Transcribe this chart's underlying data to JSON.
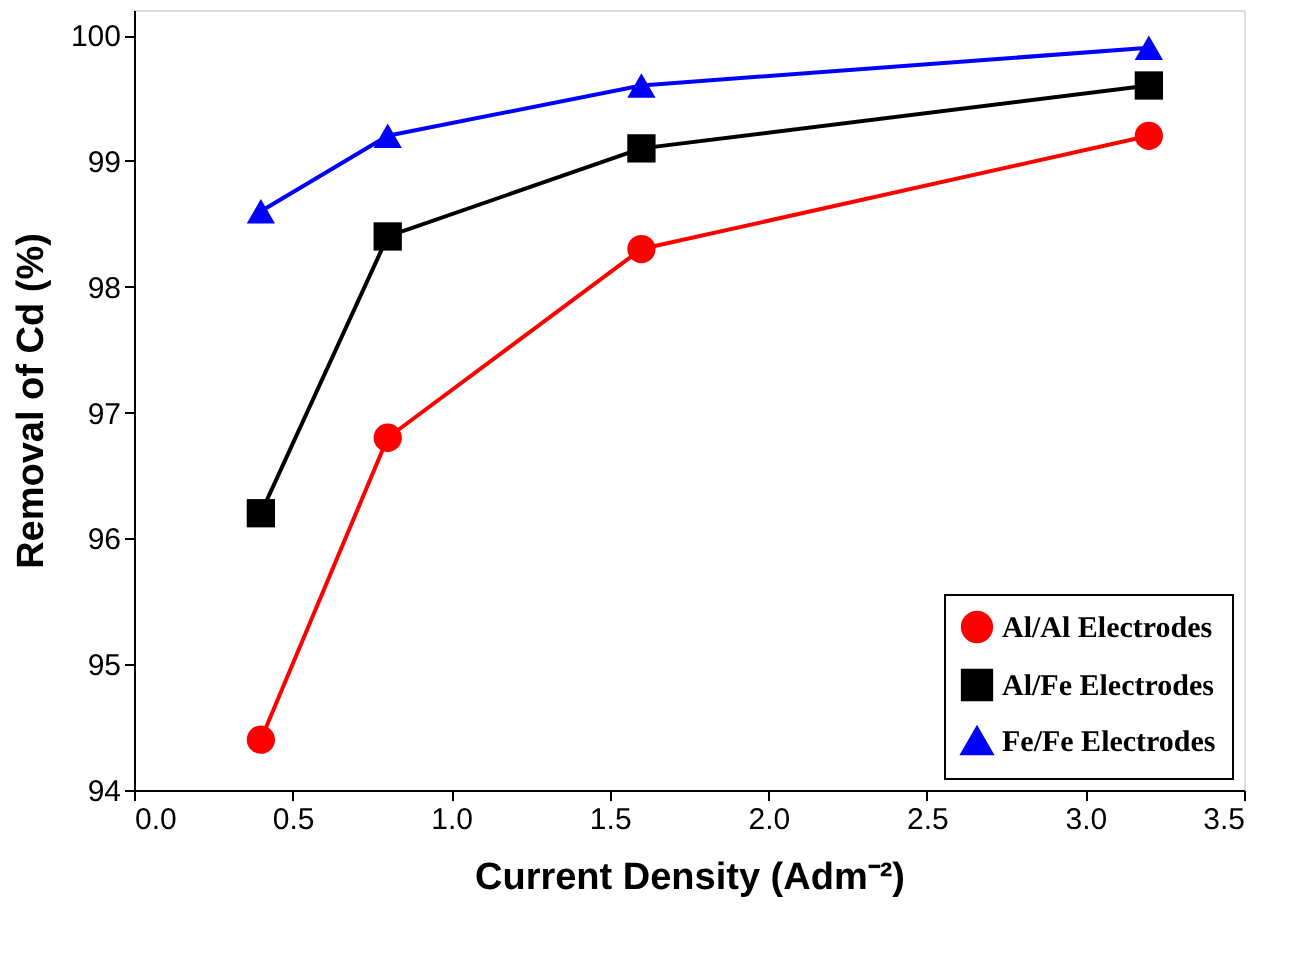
{
  "chart_data": {
    "type": "line",
    "xlabel": "Current Density (Adm⁻²)",
    "ylabel": "Removal of Cd (%)",
    "x": [
      0.4,
      0.8,
      1.6,
      3.2
    ],
    "series": [
      {
        "name": "Al/Al Electrodes",
        "color": "#ff0000",
        "marker": "circle",
        "values": [
          94.4,
          96.8,
          98.3,
          99.2
        ]
      },
      {
        "name": "Al/Fe Electrodes",
        "color": "#000000",
        "marker": "square",
        "values": [
          96.2,
          98.4,
          99.1,
          99.6
        ]
      },
      {
        "name": "Fe/Fe Electrodes",
        "color": "#0000ff",
        "marker": "triangle",
        "values": [
          98.6,
          99.2,
          99.6,
          99.9
        ]
      }
    ],
    "xlim": [
      0,
      3.5
    ],
    "xticks": [
      {
        "value": 0,
        "label": "0.0"
      },
      0.5,
      {
        "value": 1,
        "label": "1.0"
      },
      1.5,
      {
        "value": 2,
        "label": "2.0"
      },
      2.5,
      {
        "value": 3,
        "label": "3.0"
      },
      3.5
    ],
    "ylim": [
      94,
      100.2
    ],
    "yticks": [
      94,
      95,
      96,
      97,
      98,
      99,
      100
    ],
    "grid": false,
    "legend": "bottom right",
    "line_style": "solid"
  }
}
